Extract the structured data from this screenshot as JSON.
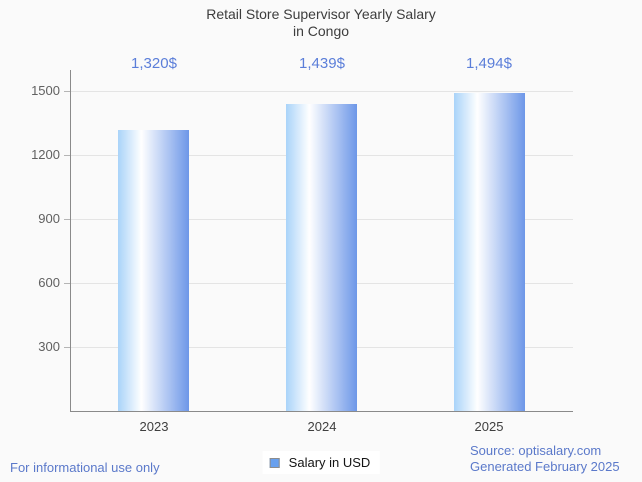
{
  "ui": {
    "title_lines": [
      "Retail Store Supervisor Yearly Salary",
      "in Congo"
    ],
    "legend": {
      "label": "Salary in USD"
    },
    "footer_left": "For informational use only",
    "footer_right_lines": [
      "Source: optisalary.com",
      "Generated February 2025"
    ]
  },
  "colors": {
    "background": "#fafafa",
    "title_text": "#3d3d3d",
    "value_label_blue": "#5b7ed9",
    "footer_blue": "#5b79ca",
    "grid": "#e4e4e4",
    "axis": "#8a8a8a",
    "tick_text": "#616161",
    "category_text": "#3f3f3f",
    "bar_gradient": [
      "#a9d3f9",
      "#ffffff",
      "#6d97e8"
    ],
    "legend_marker_fill": "#68a0ee",
    "legend_marker_border": "#8c8c8c"
  },
  "chart_data": {
    "type": "bar",
    "title": "Retail Store Supervisor Yearly Salary in Congo",
    "categories": [
      "2023",
      "2024",
      "2025"
    ],
    "series": [
      {
        "name": "Salary in USD",
        "values": [
          1320,
          1439,
          1494
        ]
      }
    ],
    "value_labels": [
      "1,320$",
      "1,439$",
      "1,494$"
    ],
    "xlabel": "",
    "ylabel": "",
    "ylim": [
      0,
      1600
    ],
    "yticks": [
      300,
      600,
      900,
      1200,
      1500
    ],
    "grid": true,
    "legend_position": "bottom-center",
    "bar_style": "horizontal-gradient-light-to-blue"
  }
}
